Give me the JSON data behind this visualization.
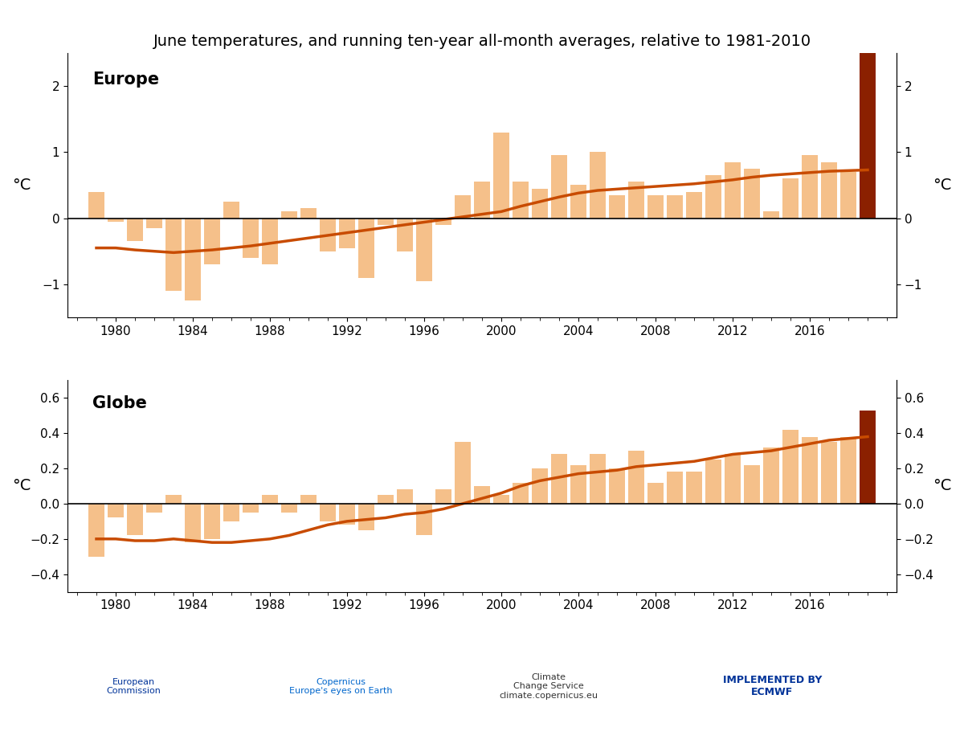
{
  "title": "June temperatures, and running ten-year all-month averages, relative to 1981-2010",
  "europe_label": "Europe",
  "globe_label": "Globe",
  "bar_color": "#F5C08A",
  "line_color": "#C84B00",
  "record_bar_color": "#8B2000",
  "background_color": "#FFFFFF",
  "europe_ylim": [
    -1.5,
    2.5
  ],
  "europe_yticks": [
    -1,
    0,
    1,
    2
  ],
  "globe_ylim": [
    -0.5,
    0.7
  ],
  "globe_yticks": [
    -0.4,
    -0.2,
    0,
    0.2,
    0.4,
    0.6
  ],
  "years": [
    1979,
    1980,
    1981,
    1982,
    1983,
    1984,
    1985,
    1986,
    1987,
    1988,
    1989,
    1990,
    1991,
    1992,
    1993,
    1994,
    1995,
    1996,
    1997,
    1998,
    1999,
    2000,
    2001,
    2002,
    2003,
    2004,
    2005,
    2006,
    2007,
    2008,
    2009,
    2010,
    2011,
    2012,
    2013,
    2014,
    2015,
    2016,
    2017,
    2018,
    2019
  ],
  "europe_bars": [
    0.4,
    -0.05,
    -0.35,
    -0.15,
    -1.1,
    -1.25,
    -0.7,
    0.25,
    -0.6,
    -0.7,
    0.1,
    0.15,
    -0.5,
    -0.45,
    -0.9,
    -0.1,
    -0.5,
    -0.95,
    -0.1,
    0.35,
    0.55,
    1.3,
    0.55,
    0.45,
    0.95,
    0.5,
    1.0,
    0.35,
    0.55,
    0.35,
    0.35,
    0.4,
    0.65,
    0.85,
    0.75,
    0.1,
    0.6,
    0.95,
    0.85,
    0.7,
    2.5
  ],
  "europe_line": [
    -0.45,
    -0.45,
    -0.48,
    -0.5,
    -0.52,
    -0.5,
    -0.48,
    -0.45,
    -0.42,
    -0.38,
    -0.34,
    -0.3,
    -0.26,
    -0.22,
    -0.18,
    -0.14,
    -0.1,
    -0.06,
    -0.02,
    0.02,
    0.06,
    0.1,
    0.18,
    0.25,
    0.32,
    0.38,
    0.42,
    0.44,
    0.46,
    0.48,
    0.5,
    0.52,
    0.55,
    0.58,
    0.62,
    0.65,
    0.67,
    0.69,
    0.71,
    0.72,
    0.73
  ],
  "globe_bars": [
    -0.3,
    -0.08,
    -0.18,
    -0.05,
    0.05,
    -0.22,
    -0.2,
    -0.1,
    -0.05,
    0.05,
    -0.05,
    0.05,
    -0.1,
    -0.12,
    -0.15,
    0.05,
    0.08,
    -0.18,
    0.08,
    0.35,
    0.1,
    0.05,
    0.12,
    0.2,
    0.28,
    0.22,
    0.28,
    0.2,
    0.3,
    0.12,
    0.18,
    0.18,
    0.25,
    0.28,
    0.22,
    0.32,
    0.42,
    0.38,
    0.35,
    0.38,
    0.53
  ],
  "globe_line": [
    -0.2,
    -0.2,
    -0.21,
    -0.21,
    -0.2,
    -0.21,
    -0.22,
    -0.22,
    -0.21,
    -0.2,
    -0.18,
    -0.15,
    -0.12,
    -0.1,
    -0.09,
    -0.08,
    -0.06,
    -0.05,
    -0.03,
    0.0,
    0.03,
    0.06,
    0.1,
    0.13,
    0.15,
    0.17,
    0.18,
    0.19,
    0.21,
    0.22,
    0.23,
    0.24,
    0.26,
    0.28,
    0.29,
    0.3,
    0.32,
    0.34,
    0.36,
    0.37,
    0.38
  ]
}
